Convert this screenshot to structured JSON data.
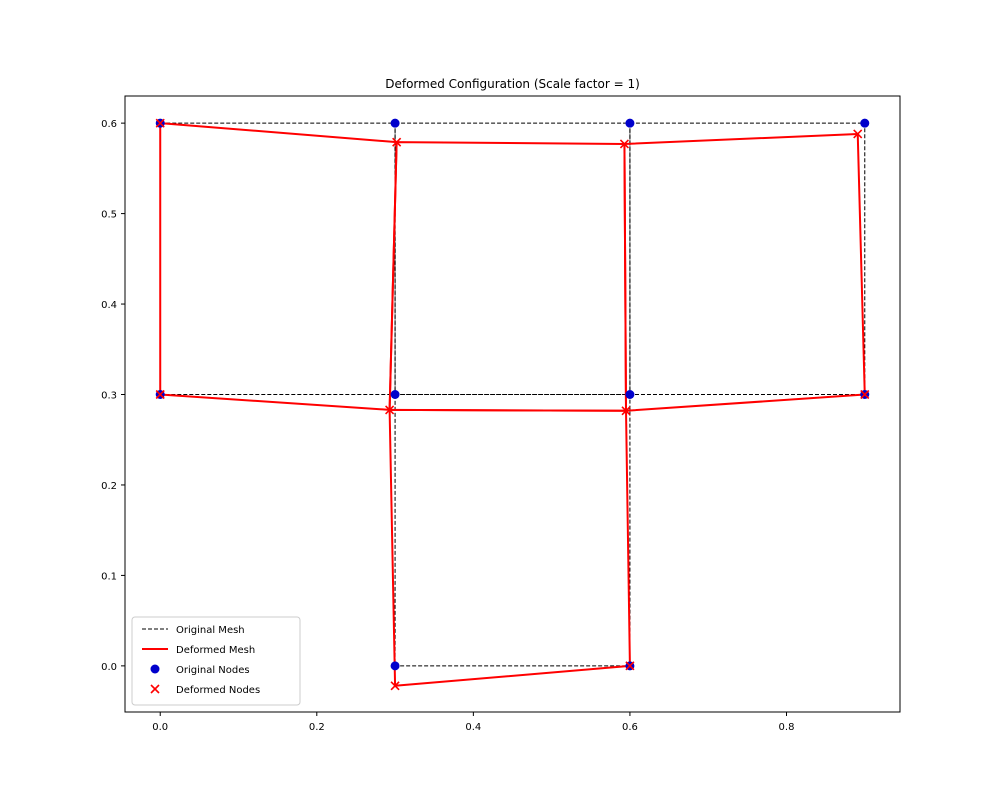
{
  "chart_data": {
    "type": "line",
    "title": "Deformed Configuration (Scale factor = 1)",
    "xlabel": "",
    "ylabel": "",
    "xlim": [
      -0.045,
      0.945
    ],
    "ylim": [
      -0.051,
      0.63
    ],
    "x_ticks": [
      0.0,
      0.2,
      0.4,
      0.6,
      0.8
    ],
    "x_tick_labels": [
      "0.0",
      "0.2",
      "0.4",
      "0.6",
      "0.8"
    ],
    "y_ticks": [
      0.0,
      0.1,
      0.2,
      0.3,
      0.4,
      0.5,
      0.6
    ],
    "y_tick_labels": [
      "0.0",
      "0.1",
      "0.2",
      "0.3",
      "0.4",
      "0.5",
      "0.6"
    ],
    "grid": false,
    "legend_position": "lower-left",
    "colors": {
      "original_mesh": "#000000",
      "deformed_mesh": "#ff0000",
      "original_nodes": "#0000cc",
      "deformed_nodes": "#ff0000"
    },
    "original_nodes": [
      [
        0.0,
        0.6
      ],
      [
        0.3,
        0.6
      ],
      [
        0.6,
        0.6
      ],
      [
        0.9,
        0.6
      ],
      [
        0.0,
        0.3
      ],
      [
        0.3,
        0.3
      ],
      [
        0.6,
        0.3
      ],
      [
        0.9,
        0.3
      ],
      [
        0.3,
        0.0
      ],
      [
        0.6,
        0.0
      ]
    ],
    "deformed_nodes": [
      [
        0.0,
        0.6
      ],
      [
        0.302,
        0.579
      ],
      [
        0.593,
        0.577
      ],
      [
        0.891,
        0.588
      ],
      [
        0.0,
        0.3
      ],
      [
        0.293,
        0.283
      ],
      [
        0.595,
        0.282
      ],
      [
        0.9,
        0.3
      ],
      [
        0.3,
        -0.022
      ],
      [
        0.6,
        0.0
      ]
    ],
    "elements": [
      [
        0,
        1,
        5,
        4
      ],
      [
        1,
        2,
        6,
        5
      ],
      [
        2,
        3,
        7,
        6
      ],
      [
        5,
        6,
        9,
        8
      ]
    ],
    "legend": [
      {
        "label": "Original Mesh",
        "kind": "dashed-line"
      },
      {
        "label": "Deformed Mesh",
        "kind": "solid-line"
      },
      {
        "label": "Original Nodes",
        "kind": "circle"
      },
      {
        "label": "Deformed Nodes",
        "kind": "cross"
      }
    ]
  }
}
